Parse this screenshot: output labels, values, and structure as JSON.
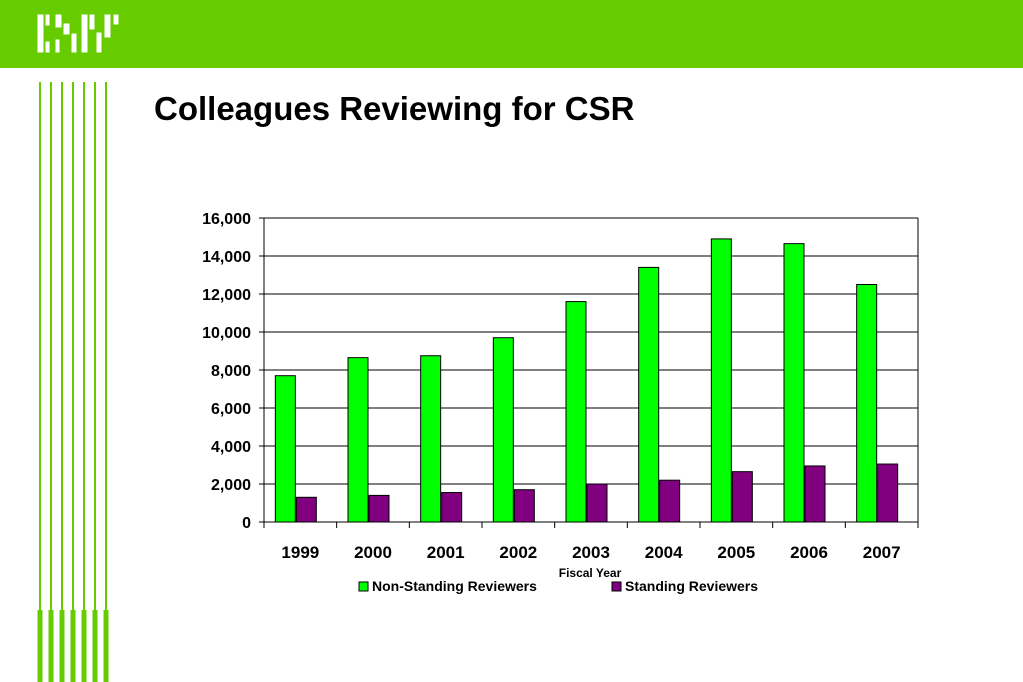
{
  "slide": {
    "title": "Colleagues Reviewing for CSR",
    "logo_text": "CSR"
  },
  "colors": {
    "header_green": "#66cc00",
    "non_standing": "#00ff00",
    "standing": "#800080"
  },
  "chart_data": {
    "type": "bar",
    "title": "",
    "xlabel": "Fiscal Year",
    "ylabel": "",
    "ylim": [
      0,
      16000
    ],
    "yticks": [
      0,
      2000,
      4000,
      6000,
      8000,
      10000,
      12000,
      14000,
      16000
    ],
    "ytick_labels": [
      "0",
      "2,000",
      "4,000",
      "6,000",
      "8,000",
      "10,000",
      "12,000",
      "14,000",
      "16,000"
    ],
    "grid": true,
    "legend_position": "bottom",
    "categories": [
      "1999",
      "2000",
      "2001",
      "2002",
      "2003",
      "2004",
      "2005",
      "2006",
      "2007"
    ],
    "series": [
      {
        "name": "Non-Standing Reviewers",
        "color": "#00ff00",
        "values": [
          7700,
          8650,
          8750,
          9700,
          11600,
          13400,
          14900,
          14650,
          12500
        ]
      },
      {
        "name": "Standing Reviewers",
        "color": "#800080",
        "values": [
          1300,
          1400,
          1550,
          1700,
          2000,
          2200,
          2650,
          2950,
          3050
        ]
      }
    ]
  }
}
